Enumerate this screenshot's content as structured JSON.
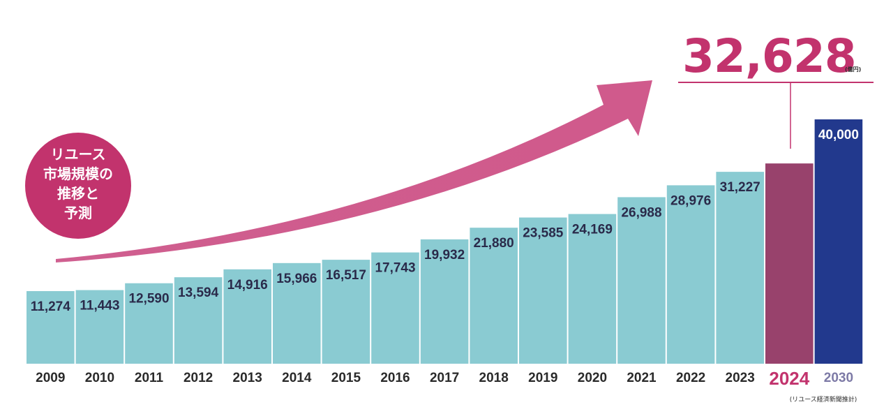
{
  "chart_data": {
    "type": "bar",
    "title": "リユース市場規模の推移と予測",
    "title_lines": [
      "リユース",
      "市場規模の",
      "推移と",
      "予測"
    ],
    "categories": [
      "2009",
      "2010",
      "2011",
      "2012",
      "2013",
      "2014",
      "2015",
      "2016",
      "2017",
      "2018",
      "2019",
      "2020",
      "2021",
      "2022",
      "2023",
      "2024",
      "2030"
    ],
    "values": [
      11274,
      11443,
      12590,
      13594,
      14916,
      15966,
      16517,
      17743,
      19932,
      21880,
      23585,
      24169,
      26988,
      28976,
      31227,
      32628,
      40000
    ],
    "value_labels": [
      "11,274",
      "11,443",
      "12,590",
      "13,594",
      "14,916",
      "15,966",
      "16,517",
      "17,743",
      "19,932",
      "21,880",
      "23,585",
      "24,169",
      "26,988",
      "28,976",
      "31,227",
      "32,628",
      "40,000"
    ],
    "highlight": {
      "category": "2024",
      "label": "32,628",
      "unit": "(億円)"
    },
    "colors": {
      "default": "#8acbd2",
      "highlight": "#98426c",
      "forecast": "#22398d",
      "accent": "#c2336d",
      "arrow": "#c7437c"
    },
    "ylim": [
      0,
      40000
    ],
    "xlabel": "",
    "ylabel": "",
    "source": "(リユース経済新聞推計)",
    "grid": false
  }
}
